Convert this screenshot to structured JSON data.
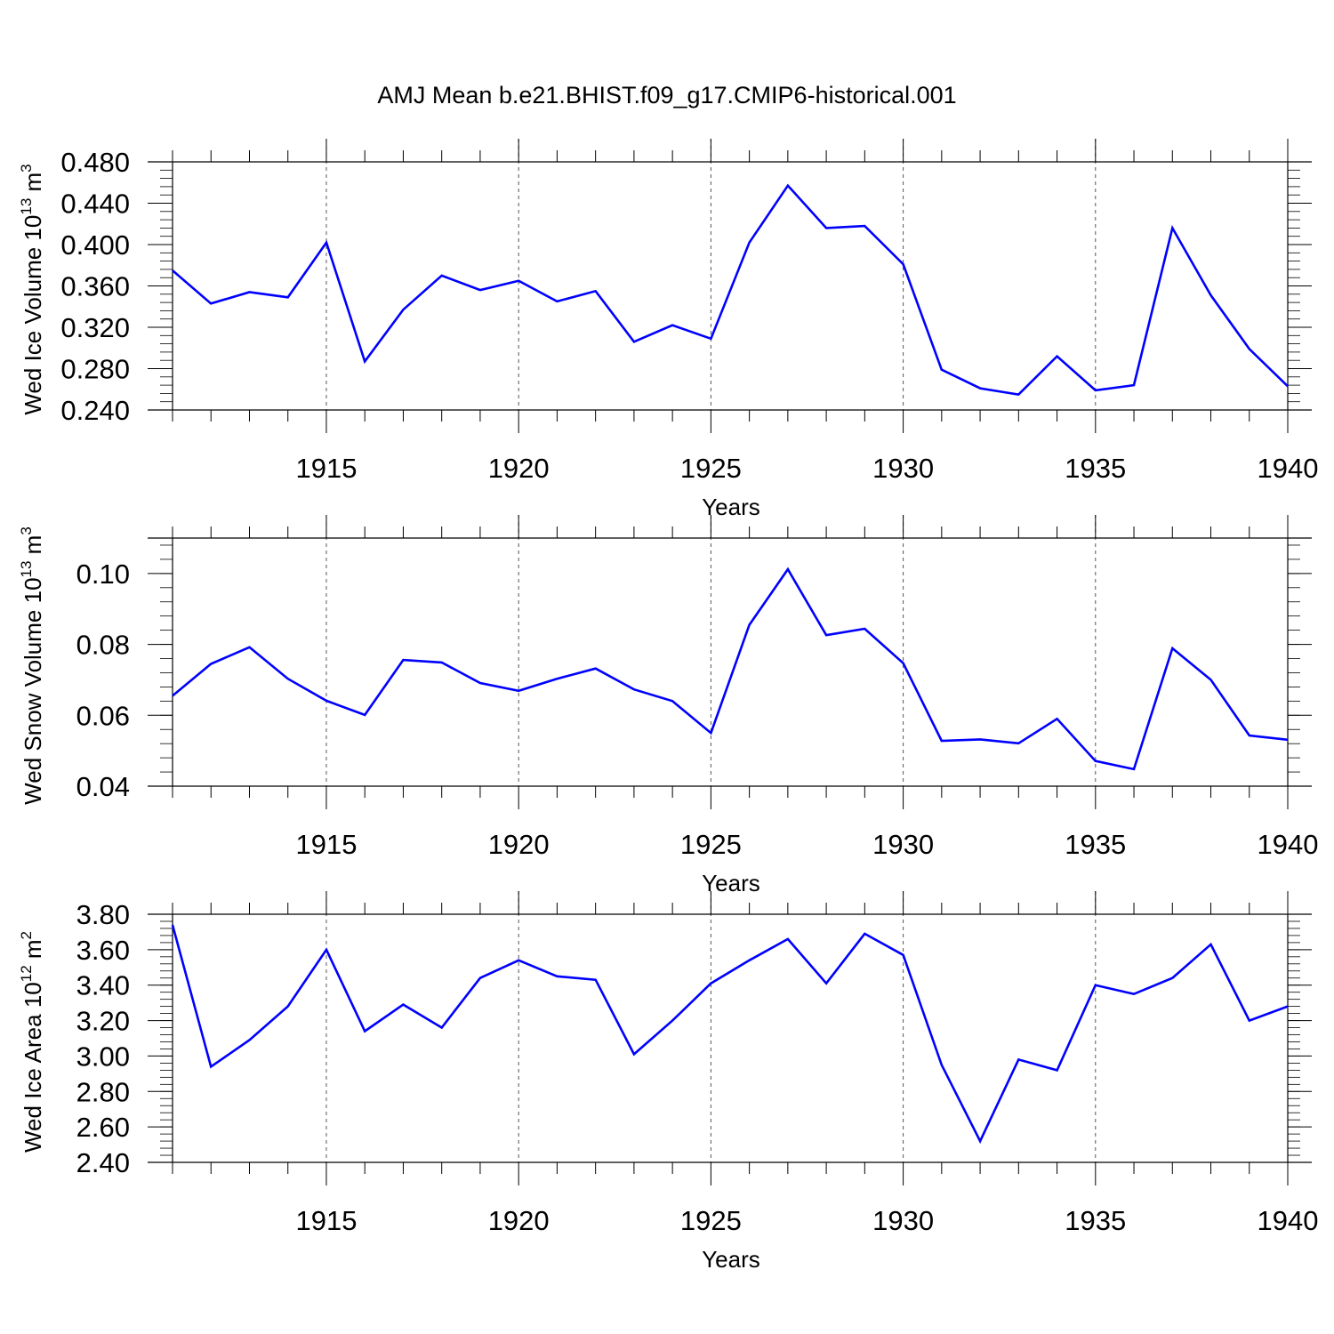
{
  "title": "AMJ Mean b.e21.BHIST.f09_g17.CMIP6-historical.001",
  "colors": {
    "series": "#0000ff",
    "axis": "#000000",
    "grid": "#555555"
  },
  "chart_data": [
    {
      "type": "line",
      "ylabel": "Wed Ice Volume 10",
      "ylabel_exp": "13",
      "ylabel_unit": " m",
      "ylabel_unit_exp": "3",
      "xlabel": "Years",
      "xlim": [
        1911,
        1940
      ],
      "ylim": [
        0.24,
        0.48
      ],
      "yticks": [
        "0.240",
        "0.280",
        "0.320",
        "0.360",
        "0.400",
        "0.440",
        "0.480"
      ],
      "yticks_values": [
        0.24,
        0.28,
        0.32,
        0.36,
        0.4,
        0.44,
        0.48
      ],
      "xticks": [
        "1915",
        "1920",
        "1925",
        "1930",
        "1935",
        "1940"
      ],
      "xticks_values": [
        1915,
        1920,
        1925,
        1930,
        1935,
        1940
      ],
      "grid": "vertical dashed at major x ticks",
      "x": [
        1911,
        1912,
        1913,
        1914,
        1915,
        1916,
        1917,
        1918,
        1919,
        1920,
        1921,
        1922,
        1923,
        1924,
        1925,
        1926,
        1927,
        1928,
        1929,
        1930,
        1931,
        1932,
        1933,
        1934,
        1935,
        1936,
        1937,
        1938,
        1939,
        1940
      ],
      "values": [
        0.375,
        0.343,
        0.354,
        0.349,
        0.402,
        0.287,
        0.337,
        0.37,
        0.356,
        0.365,
        0.345,
        0.355,
        0.306,
        0.322,
        0.309,
        0.402,
        0.457,
        0.416,
        0.418,
        0.381,
        0.279,
        0.261,
        0.255,
        0.292,
        0.259,
        0.264,
        0.416,
        0.351,
        0.299,
        0.263
      ]
    },
    {
      "type": "line",
      "ylabel": "Wed Snow Volume 10",
      "ylabel_exp": "13",
      "ylabel_unit": " m",
      "ylabel_unit_exp": "3",
      "xlabel": "Years",
      "xlim": [
        1911,
        1940
      ],
      "ylim": [
        0.04,
        0.11
      ],
      "yticks": [
        "0.04",
        "0.06",
        "0.08",
        "0.10"
      ],
      "yticks_values": [
        0.04,
        0.06,
        0.08,
        0.1
      ],
      "xticks": [
        "1915",
        "1920",
        "1925",
        "1930",
        "1935",
        "1940"
      ],
      "xticks_values": [
        1915,
        1920,
        1925,
        1930,
        1935,
        1940
      ],
      "grid": "vertical dashed at major x ticks",
      "x": [
        1911,
        1912,
        1913,
        1914,
        1915,
        1916,
        1917,
        1918,
        1919,
        1920,
        1921,
        1922,
        1923,
        1924,
        1925,
        1926,
        1927,
        1928,
        1929,
        1930,
        1931,
        1932,
        1933,
        1934,
        1935,
        1936,
        1937,
        1938,
        1939,
        1940
      ],
      "values": [
        0.0655,
        0.0745,
        0.0792,
        0.0703,
        0.0641,
        0.0601,
        0.0756,
        0.0749,
        0.0691,
        0.0669,
        0.0703,
        0.0732,
        0.0673,
        0.064,
        0.055,
        0.0855,
        0.1012,
        0.0826,
        0.0844,
        0.0747,
        0.0528,
        0.0532,
        0.0521,
        0.059,
        0.0471,
        0.0448,
        0.0789,
        0.07,
        0.0543,
        0.0531
      ]
    },
    {
      "type": "line",
      "ylabel": "Wed Ice Area 10",
      "ylabel_exp": "12",
      "ylabel_unit": " m",
      "ylabel_unit_exp": "2",
      "xlabel": "Years",
      "xlim": [
        1911,
        1940
      ],
      "ylim": [
        2.4,
        3.8
      ],
      "yticks": [
        "2.40",
        "2.60",
        "2.80",
        "3.00",
        "3.20",
        "3.40",
        "3.60",
        "3.80"
      ],
      "yticks_values": [
        2.4,
        2.6,
        2.8,
        3.0,
        3.2,
        3.4,
        3.6,
        3.8
      ],
      "xticks": [
        "1915",
        "1920",
        "1925",
        "1930",
        "1935",
        "1940"
      ],
      "xticks_values": [
        1915,
        1920,
        1925,
        1930,
        1935,
        1940
      ],
      "grid": "vertical dashed at major x ticks",
      "x": [
        1911,
        1912,
        1913,
        1914,
        1915,
        1916,
        1917,
        1918,
        1919,
        1920,
        1921,
        1922,
        1923,
        1924,
        1925,
        1926,
        1927,
        1928,
        1929,
        1930,
        1931,
        1932,
        1933,
        1934,
        1935,
        1936,
        1937,
        1938,
        1939,
        1940
      ],
      "values": [
        3.74,
        2.94,
        3.09,
        3.28,
        3.6,
        3.14,
        3.29,
        3.16,
        3.44,
        3.54,
        3.45,
        3.43,
        3.01,
        3.2,
        3.41,
        3.54,
        3.66,
        3.41,
        3.69,
        3.57,
        2.95,
        2.52,
        2.98,
        2.92,
        3.4,
        3.35,
        3.44,
        3.63,
        3.2,
        3.28
      ]
    }
  ]
}
